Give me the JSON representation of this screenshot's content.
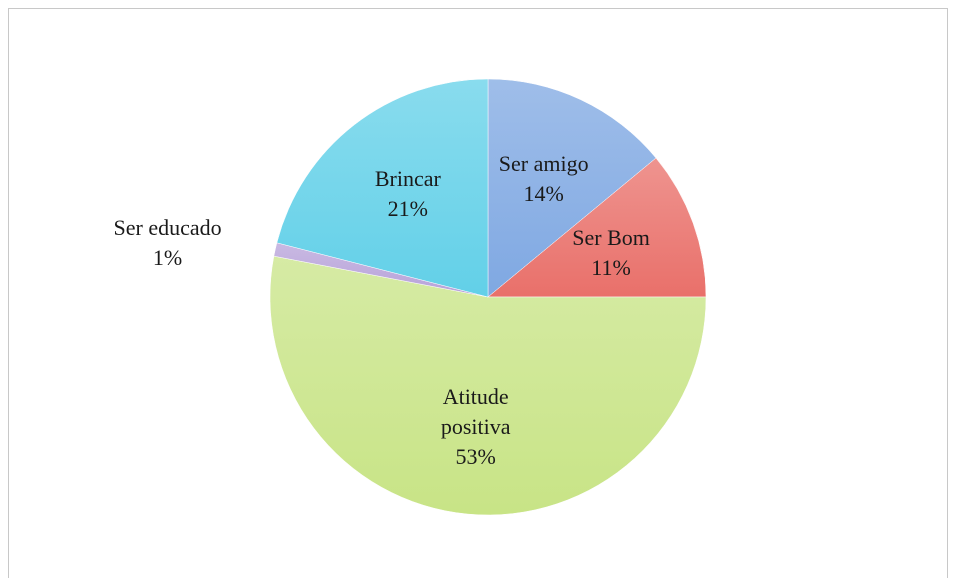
{
  "chart_data": {
    "type": "pie",
    "categories": [
      "Ser amigo",
      "Ser Bom",
      "Atitude positiva",
      "Ser educado",
      "Brincar"
    ],
    "values": [
      14,
      11,
      53,
      1,
      21
    ],
    "value_labels": [
      "14%",
      "11%",
      "53%",
      "1%",
      "21%"
    ],
    "colors": [
      "#7fa8e2",
      "#e9706a",
      "#c8e486",
      "#b7a2d9",
      "#62d0e8"
    ]
  }
}
